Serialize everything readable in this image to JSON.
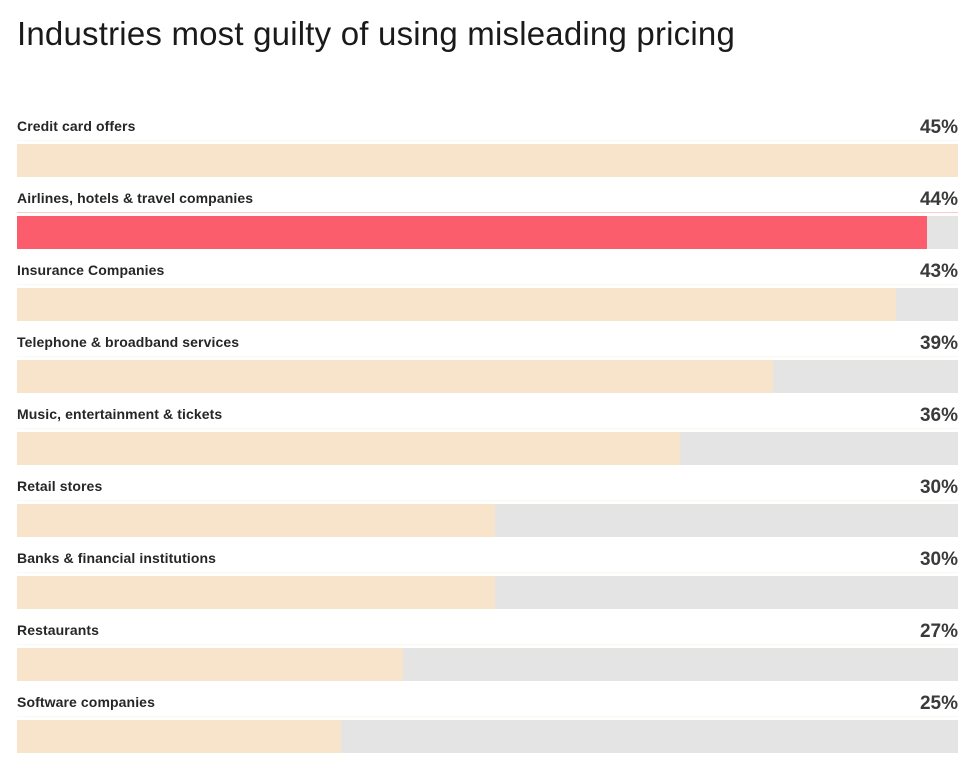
{
  "chart_data": {
    "type": "bar",
    "orientation": "horizontal",
    "title": "Industries most guilty of using misleading pricing",
    "categories": [
      "Credit card offers",
      "Airlines, hotels & travel companies",
      "Insurance Companies",
      "Telephone & broadband services",
      "Music, entertainment & tickets",
      "Retail stores",
      "Banks & financial institutions",
      "Restaurants",
      "Software companies"
    ],
    "values": [
      45,
      44,
      43,
      39,
      36,
      30,
      30,
      27,
      25
    ],
    "value_labels": [
      "45%",
      "44%",
      "43%",
      "39%",
      "36%",
      "30%",
      "30%",
      "27%",
      "25%"
    ],
    "unit": "%",
    "highlight_index": 1,
    "colors": {
      "bar": "#f8e4cb",
      "highlight_bar": "#fb5d6c",
      "track": "#e4e4e4",
      "title_text": "#1a1a1a",
      "label_text": "#262626",
      "value_text": "#3a3a3a",
      "background": "#ffffff"
    },
    "axis": {
      "xlim": [
        14.5,
        45
      ],
      "gridlines": false,
      "legend": "none",
      "value_labels_position": "right-above-bar"
    }
  }
}
